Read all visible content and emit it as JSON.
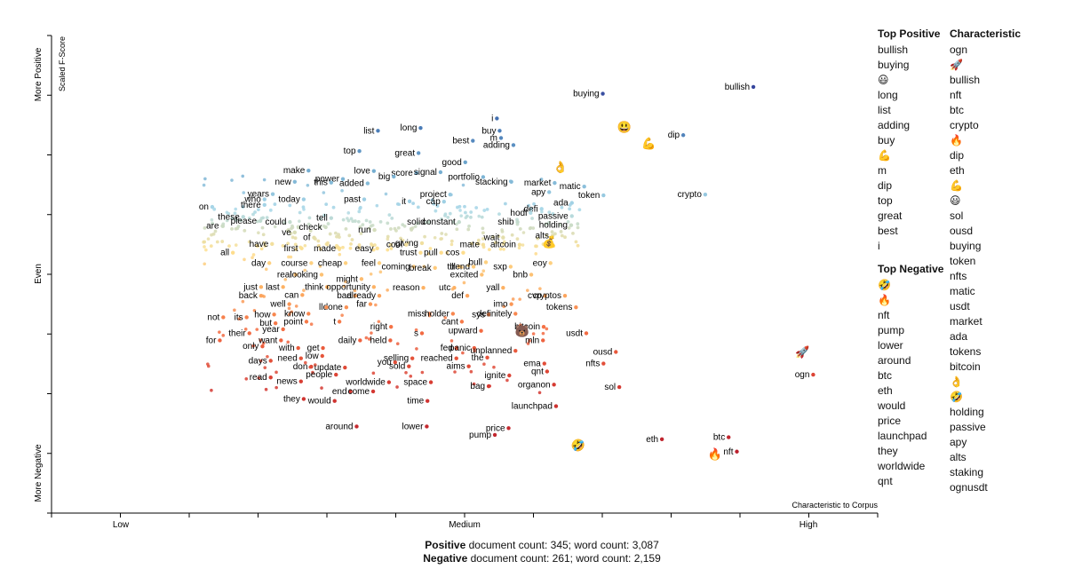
{
  "chart_data": {
    "type": "scatter",
    "title": "",
    "xlabel": "Characteristic to Corpus",
    "ylabel": "Scaled F-Score",
    "x_ticks": [
      "Low",
      "Medium",
      "High"
    ],
    "y_ticks": [
      "More Positive",
      "Even",
      "More Negative"
    ],
    "xlim": [
      0,
      1
    ],
    "ylim": [
      0,
      1
    ],
    "color_scale": "diverging red (negative) to blue (positive)",
    "labeled_points": [
      {
        "w": "bullish",
        "x": 0.92,
        "y": 0.969,
        "e": 0
      },
      {
        "w": "buying",
        "x": 0.701,
        "y": 0.952,
        "e": 0
      },
      {
        "w": "i",
        "x": 0.547,
        "y": 0.89,
        "e": 0
      },
      {
        "w": "😃",
        "x": 0.732,
        "y": 0.87,
        "e": 1
      },
      {
        "w": "long",
        "x": 0.436,
        "y": 0.866,
        "e": 0
      },
      {
        "w": "buy",
        "x": 0.551,
        "y": 0.859,
        "e": 0
      },
      {
        "w": "list",
        "x": 0.374,
        "y": 0.859,
        "e": 0
      },
      {
        "w": "dip",
        "x": 0.818,
        "y": 0.848,
        "e": 0
      },
      {
        "w": "m",
        "x": 0.553,
        "y": 0.841,
        "e": 0
      },
      {
        "w": "best",
        "x": 0.512,
        "y": 0.834,
        "e": 0
      },
      {
        "w": "💪",
        "x": 0.768,
        "y": 0.829,
        "e": 1
      },
      {
        "w": "adding",
        "x": 0.571,
        "y": 0.823,
        "e": 0
      },
      {
        "w": "top",
        "x": 0.347,
        "y": 0.808,
        "e": 0
      },
      {
        "w": "great",
        "x": 0.433,
        "y": 0.803,
        "e": 0
      },
      {
        "w": "good",
        "x": 0.501,
        "y": 0.78,
        "e": 0
      },
      {
        "w": "👌",
        "x": 0.639,
        "y": 0.77,
        "e": 1
      },
      {
        "w": "make",
        "x": 0.273,
        "y": 0.759,
        "e": 0
      },
      {
        "w": "score",
        "x": 0.43,
        "y": 0.753,
        "e": 0
      },
      {
        "w": "signal",
        "x": 0.465,
        "y": 0.755,
        "e": 0
      },
      {
        "w": "big",
        "x": 0.397,
        "y": 0.744,
        "e": 0
      },
      {
        "w": "love",
        "x": 0.368,
        "y": 0.758,
        "e": 0
      },
      {
        "w": "power",
        "x": 0.323,
        "y": 0.738,
        "e": 0
      },
      {
        "w": "portfolio",
        "x": 0.527,
        "y": 0.743,
        "e": 0
      },
      {
        "w": "stacking",
        "x": 0.568,
        "y": 0.731,
        "e": 0
      },
      {
        "w": "market",
        "x": 0.631,
        "y": 0.728,
        "e": 0
      },
      {
        "w": "new",
        "x": 0.253,
        "y": 0.731,
        "e": 0
      },
      {
        "w": "added",
        "x": 0.359,
        "y": 0.727,
        "e": 0
      },
      {
        "w": "this",
        "x": 0.306,
        "y": 0.729,
        "e": 0
      },
      {
        "w": "years",
        "x": 0.221,
        "y": 0.7,
        "e": 0
      },
      {
        "w": "matic",
        "x": 0.674,
        "y": 0.719,
        "e": 0
      },
      {
        "w": "token",
        "x": 0.702,
        "y": 0.697,
        "e": 0
      },
      {
        "w": "crypto",
        "x": 0.85,
        "y": 0.699,
        "e": 0
      },
      {
        "w": "project",
        "x": 0.479,
        "y": 0.699,
        "e": 0
      },
      {
        "w": "apy",
        "x": 0.623,
        "y": 0.705,
        "e": 0
      },
      {
        "w": "who",
        "x": 0.209,
        "y": 0.687,
        "e": 0
      },
      {
        "w": "past",
        "x": 0.354,
        "y": 0.687,
        "e": 0
      },
      {
        "w": "today",
        "x": 0.266,
        "y": 0.687,
        "e": 0
      },
      {
        "w": "it",
        "x": 0.42,
        "y": 0.682,
        "e": 0
      },
      {
        "w": "cap",
        "x": 0.47,
        "y": 0.681,
        "e": 0
      },
      {
        "w": "there",
        "x": 0.209,
        "y": 0.673,
        "e": 0
      },
      {
        "w": "ada",
        "x": 0.656,
        "y": 0.678,
        "e": 0
      },
      {
        "w": "on",
        "x": 0.133,
        "y": 0.668,
        "e": 0
      },
      {
        "w": "defi",
        "x": 0.612,
        "y": 0.663,
        "e": 0
      },
      {
        "w": "hodl",
        "x": 0.596,
        "y": 0.653,
        "e": 0
      },
      {
        "w": "these",
        "x": 0.178,
        "y": 0.643,
        "e": 0
      },
      {
        "w": "passive",
        "x": 0.656,
        "y": 0.645,
        "e": 0
      },
      {
        "w": "tell",
        "x": 0.306,
        "y": 0.64,
        "e": 0
      },
      {
        "w": "solid",
        "x": 0.448,
        "y": 0.63,
        "e": 0
      },
      {
        "w": "constant",
        "x": 0.492,
        "y": 0.63,
        "e": 0
      },
      {
        "w": "shib",
        "x": 0.577,
        "y": 0.63,
        "e": 0
      },
      {
        "w": "please",
        "x": 0.203,
        "y": 0.633,
        "e": 0
      },
      {
        "w": "could",
        "x": 0.246,
        "y": 0.63,
        "e": 0
      },
      {
        "w": "holding",
        "x": 0.655,
        "y": 0.622,
        "e": 0
      },
      {
        "w": "are",
        "x": 0.148,
        "y": 0.62,
        "e": 0
      },
      {
        "w": "check",
        "x": 0.298,
        "y": 0.617,
        "e": 0
      },
      {
        "w": "run",
        "x": 0.369,
        "y": 0.61,
        "e": 0
      },
      {
        "w": "ve",
        "x": 0.253,
        "y": 0.604,
        "e": 0
      },
      {
        "w": "alts",
        "x": 0.628,
        "y": 0.596,
        "e": 0
      },
      {
        "w": "of",
        "x": 0.281,
        "y": 0.591,
        "e": 0
      },
      {
        "w": "wait",
        "x": 0.556,
        "y": 0.591,
        "e": 0
      },
      {
        "w": "💰",
        "x": 0.623,
        "y": 0.581,
        "e": 1
      },
      {
        "w": "have",
        "x": 0.22,
        "y": 0.575,
        "e": 0
      },
      {
        "w": "giving",
        "x": 0.438,
        "y": 0.577,
        "e": 0
      },
      {
        "w": "mate",
        "x": 0.527,
        "y": 0.573,
        "e": 0
      },
      {
        "w": "altcoin",
        "x": 0.58,
        "y": 0.573,
        "e": 0
      },
      {
        "w": "cool",
        "x": 0.415,
        "y": 0.573,
        "e": 0
      },
      {
        "w": "made",
        "x": 0.318,
        "y": 0.564,
        "e": 0
      },
      {
        "w": "first",
        "x": 0.263,
        "y": 0.564,
        "e": 0
      },
      {
        "w": "easy",
        "x": 0.373,
        "y": 0.564,
        "e": 0
      },
      {
        "w": "pull",
        "x": 0.466,
        "y": 0.553,
        "e": 0
      },
      {
        "w": "trust",
        "x": 0.436,
        "y": 0.553,
        "e": 0
      },
      {
        "w": "all",
        "x": 0.163,
        "y": 0.553,
        "e": 0
      },
      {
        "w": "cos",
        "x": 0.498,
        "y": 0.553,
        "e": 0
      },
      {
        "w": "day",
        "x": 0.216,
        "y": 0.527,
        "e": 0
      },
      {
        "w": "course",
        "x": 0.277,
        "y": 0.527,
        "e": 0
      },
      {
        "w": "cheap",
        "x": 0.327,
        "y": 0.527,
        "e": 0
      },
      {
        "w": "feel",
        "x": 0.376,
        "y": 0.527,
        "e": 0
      },
      {
        "w": "bull",
        "x": 0.531,
        "y": 0.529,
        "e": 0
      },
      {
        "w": "eoy",
        "x": 0.625,
        "y": 0.527,
        "e": 0
      },
      {
        "w": "coming",
        "x": 0.426,
        "y": 0.518,
        "e": 0
      },
      {
        "w": "break",
        "x": 0.457,
        "y": 0.515,
        "e": 0
      },
      {
        "w": "till",
        "x": 0.492,
        "y": 0.518,
        "e": 0
      },
      {
        "w": "trend",
        "x": 0.513,
        "y": 0.518,
        "e": 0
      },
      {
        "w": "sxp",
        "x": 0.567,
        "y": 0.518,
        "e": 0
      },
      {
        "w": "real",
        "x": 0.254,
        "y": 0.498,
        "e": 0
      },
      {
        "w": "looking",
        "x": 0.292,
        "y": 0.498,
        "e": 0
      },
      {
        "w": "excited",
        "x": 0.525,
        "y": 0.498,
        "e": 0
      },
      {
        "w": "bnb",
        "x": 0.597,
        "y": 0.498,
        "e": 0
      },
      {
        "w": "might",
        "x": 0.35,
        "y": 0.487,
        "e": 0
      },
      {
        "w": "think",
        "x": 0.3,
        "y": 0.467,
        "e": 0
      },
      {
        "w": "opportunity",
        "x": 0.368,
        "y": 0.467,
        "e": 0
      },
      {
        "w": "reason",
        "x": 0.44,
        "y": 0.465,
        "e": 0
      },
      {
        "w": "utc",
        "x": 0.485,
        "y": 0.465,
        "e": 0
      },
      {
        "w": "just",
        "x": 0.204,
        "y": 0.467,
        "e": 0
      },
      {
        "w": "last",
        "x": 0.236,
        "y": 0.467,
        "e": 0
      },
      {
        "w": "yall",
        "x": 0.556,
        "y": 0.465,
        "e": 0
      },
      {
        "w": "back",
        "x": 0.204,
        "y": 0.445,
        "e": 0
      },
      {
        "w": "can",
        "x": 0.264,
        "y": 0.447,
        "e": 0
      },
      {
        "w": "bad",
        "x": 0.341,
        "y": 0.445,
        "e": 0
      },
      {
        "w": "already",
        "x": 0.376,
        "y": 0.445,
        "e": 0
      },
      {
        "w": "def",
        "x": 0.504,
        "y": 0.445,
        "e": 0
      },
      {
        "w": "cvp",
        "x": 0.617,
        "y": 0.445,
        "e": 0
      },
      {
        "w": "cryptos",
        "x": 0.646,
        "y": 0.445,
        "e": 0
      },
      {
        "w": "well",
        "x": 0.245,
        "y": 0.424,
        "e": 0
      },
      {
        "w": "far",
        "x": 0.363,
        "y": 0.424,
        "e": 0
      },
      {
        "w": "imo",
        "x": 0.568,
        "y": 0.424,
        "e": 0
      },
      {
        "w": "done",
        "x": 0.328,
        "y": 0.416,
        "e": 0
      },
      {
        "w": "ll",
        "x": 0.299,
        "y": 0.416,
        "e": 0
      },
      {
        "w": "tokens",
        "x": 0.662,
        "y": 0.416,
        "e": 0
      },
      {
        "w": "know",
        "x": 0.273,
        "y": 0.4,
        "e": 0
      },
      {
        "w": "how",
        "x": 0.223,
        "y": 0.398,
        "e": 0
      },
      {
        "w": "its",
        "x": 0.183,
        "y": 0.391,
        "e": 0
      },
      {
        "w": "miss",
        "x": 0.449,
        "y": 0.4,
        "e": 0
      },
      {
        "w": "holder",
        "x": 0.483,
        "y": 0.4,
        "e": 0
      },
      {
        "w": "sys",
        "x": 0.535,
        "y": 0.398,
        "e": 0
      },
      {
        "w": "definitely",
        "x": 0.574,
        "y": 0.4,
        "e": 0
      },
      {
        "w": "not",
        "x": 0.149,
        "y": 0.391,
        "e": 0
      },
      {
        "w": "point",
        "x": 0.27,
        "y": 0.38,
        "e": 0
      },
      {
        "w": "t",
        "x": 0.318,
        "y": 0.38,
        "e": 0
      },
      {
        "w": "but",
        "x": 0.225,
        "y": 0.376,
        "e": 0
      },
      {
        "w": "cant",
        "x": 0.496,
        "y": 0.38,
        "e": 0
      },
      {
        "w": "right",
        "x": 0.393,
        "y": 0.367,
        "e": 0
      },
      {
        "w": "year",
        "x": 0.236,
        "y": 0.361,
        "e": 0
      },
      {
        "w": "bitcoin",
        "x": 0.615,
        "y": 0.367,
        "e": 0
      },
      {
        "w": "their",
        "x": 0.187,
        "y": 0.351,
        "e": 0
      },
      {
        "w": "s",
        "x": 0.438,
        "y": 0.351,
        "e": 0
      },
      {
        "w": "upward",
        "x": 0.524,
        "y": 0.357,
        "e": 0
      },
      {
        "w": "🐻",
        "x": 0.584,
        "y": 0.357,
        "e": 1
      },
      {
        "w": "usdt",
        "x": 0.677,
        "y": 0.351,
        "e": 0
      },
      {
        "w": "for",
        "x": 0.144,
        "y": 0.333,
        "e": 0
      },
      {
        "w": "daily",
        "x": 0.348,
        "y": 0.333,
        "e": 0
      },
      {
        "w": "held",
        "x": 0.392,
        "y": 0.333,
        "e": 0
      },
      {
        "w": "want",
        "x": 0.233,
        "y": 0.333,
        "e": 0
      },
      {
        "w": "mln",
        "x": 0.614,
        "y": 0.333,
        "e": 0
      },
      {
        "w": "only",
        "x": 0.206,
        "y": 0.318,
        "e": 0
      },
      {
        "w": "with",
        "x": 0.258,
        "y": 0.314,
        "e": 0
      },
      {
        "w": "get",
        "x": 0.294,
        "y": 0.314,
        "e": 0
      },
      {
        "w": "fed",
        "x": 0.488,
        "y": 0.314,
        "e": 0
      },
      {
        "w": "panic",
        "x": 0.514,
        "y": 0.314,
        "e": 0
      },
      {
        "w": "unplanned",
        "x": 0.574,
        "y": 0.307,
        "e": 0
      },
      {
        "w": "ousd",
        "x": 0.72,
        "y": 0.304,
        "e": 0
      },
      {
        "w": "low",
        "x": 0.293,
        "y": 0.294,
        "e": 0
      },
      {
        "w": "need",
        "x": 0.262,
        "y": 0.288,
        "e": 0
      },
      {
        "w": "reached",
        "x": 0.488,
        "y": 0.288,
        "e": 0
      },
      {
        "w": "the",
        "x": 0.533,
        "y": 0.29,
        "e": 0
      },
      {
        "w": "selling",
        "x": 0.424,
        "y": 0.288,
        "e": 0
      },
      {
        "w": "days",
        "x": 0.218,
        "y": 0.282,
        "e": 0
      },
      {
        "w": "you",
        "x": 0.399,
        "y": 0.278,
        "e": 0
      },
      {
        "w": "ema",
        "x": 0.616,
        "y": 0.275,
        "e": 0
      },
      {
        "w": "nfts",
        "x": 0.702,
        "y": 0.275,
        "e": 0
      },
      {
        "w": "don",
        "x": 0.277,
        "y": 0.267,
        "e": 0
      },
      {
        "w": "update",
        "x": 0.326,
        "y": 0.265,
        "e": 0
      },
      {
        "w": "sold",
        "x": 0.419,
        "y": 0.268,
        "e": 0
      },
      {
        "w": "aims",
        "x": 0.506,
        "y": 0.268,
        "e": 0
      },
      {
        "w": "qnt",
        "x": 0.62,
        "y": 0.255,
        "e": 0
      },
      {
        "w": "people",
        "x": 0.313,
        "y": 0.247,
        "e": 0
      },
      {
        "w": "read",
        "x": 0.218,
        "y": 0.24,
        "e": 0
      },
      {
        "w": "ignite",
        "x": 0.565,
        "y": 0.245,
        "e": 0
      },
      {
        "w": "news",
        "x": 0.262,
        "y": 0.23,
        "e": 0
      },
      {
        "w": "worldwide",
        "x": 0.39,
        "y": 0.228,
        "e": 0
      },
      {
        "w": "space",
        "x": 0.451,
        "y": 0.228,
        "e": 0
      },
      {
        "w": "organon",
        "x": 0.63,
        "y": 0.222,
        "e": 0
      },
      {
        "w": "bag",
        "x": 0.535,
        "y": 0.218,
        "e": 0
      },
      {
        "w": "sol",
        "x": 0.725,
        "y": 0.216,
        "e": 0
      },
      {
        "w": "end",
        "x": 0.334,
        "y": 0.205,
        "e": 0
      },
      {
        "w": "come",
        "x": 0.367,
        "y": 0.205,
        "e": 0
      },
      {
        "w": "they",
        "x": 0.266,
        "y": 0.186,
        "e": 0
      },
      {
        "w": "would",
        "x": 0.311,
        "y": 0.181,
        "e": 0
      },
      {
        "w": "time",
        "x": 0.446,
        "y": 0.181,
        "e": 0
      },
      {
        "w": "launchpad",
        "x": 0.633,
        "y": 0.168,
        "e": 0
      },
      {
        "w": "🚀",
        "x": 0.991,
        "y": 0.305,
        "e": 1
      },
      {
        "w": "ogn",
        "x": 1.007,
        "y": 0.247,
        "e": 0
      },
      {
        "w": "around",
        "x": 0.343,
        "y": 0.117,
        "e": 0
      },
      {
        "w": "lower",
        "x": 0.445,
        "y": 0.117,
        "e": 0
      },
      {
        "w": "price",
        "x": 0.564,
        "y": 0.113,
        "e": 0
      },
      {
        "w": "pump",
        "x": 0.544,
        "y": 0.096,
        "e": 0
      },
      {
        "w": "btc",
        "x": 0.884,
        "y": 0.09,
        "e": 0
      },
      {
        "w": "eth",
        "x": 0.787,
        "y": 0.085,
        "e": 0
      },
      {
        "w": "🤣",
        "x": 0.665,
        "y": 0.071,
        "e": 1
      },
      {
        "w": "🔥",
        "x": 0.864,
        "y": 0.049,
        "e": 1
      },
      {
        "w": "nft",
        "x": 0.896,
        "y": 0.054,
        "e": 0
      }
    ],
    "legend_top_positive_title": "Top Positive",
    "legend_characteristic_title": "Characteristic",
    "legend_top_negative_title": "Top Negative",
    "top_positive": [
      "bullish",
      "buying",
      "😃",
      "long",
      "list",
      "adding",
      "buy",
      "💪",
      "m",
      "dip",
      "top",
      "great",
      "best",
      "i"
    ],
    "top_negative": [
      "🤣",
      "🔥",
      "nft",
      "pump",
      "lower",
      "around",
      "btc",
      "eth",
      "would",
      "price",
      "launchpad",
      "they",
      "worldwide",
      "qnt"
    ],
    "characteristic": [
      "ogn",
      "🚀",
      "bullish",
      "nft",
      "btc",
      "crypto",
      "🔥",
      "dip",
      "eth",
      "💪",
      "😃",
      "sol",
      "ousd",
      "buying",
      "token",
      "nfts",
      "matic",
      "usdt",
      "market",
      "ada",
      "tokens",
      "bitcoin",
      "👌",
      "🤣",
      "holding",
      "passive",
      "apy",
      "alts",
      "staking",
      "ognusdt"
    ]
  },
  "footer": {
    "positive_label": "Positive",
    "positive_text": " document count: 345; word count: 3,087",
    "negative_label": "Negative",
    "negative_text": " document count: 261; word count: 2,159"
  }
}
